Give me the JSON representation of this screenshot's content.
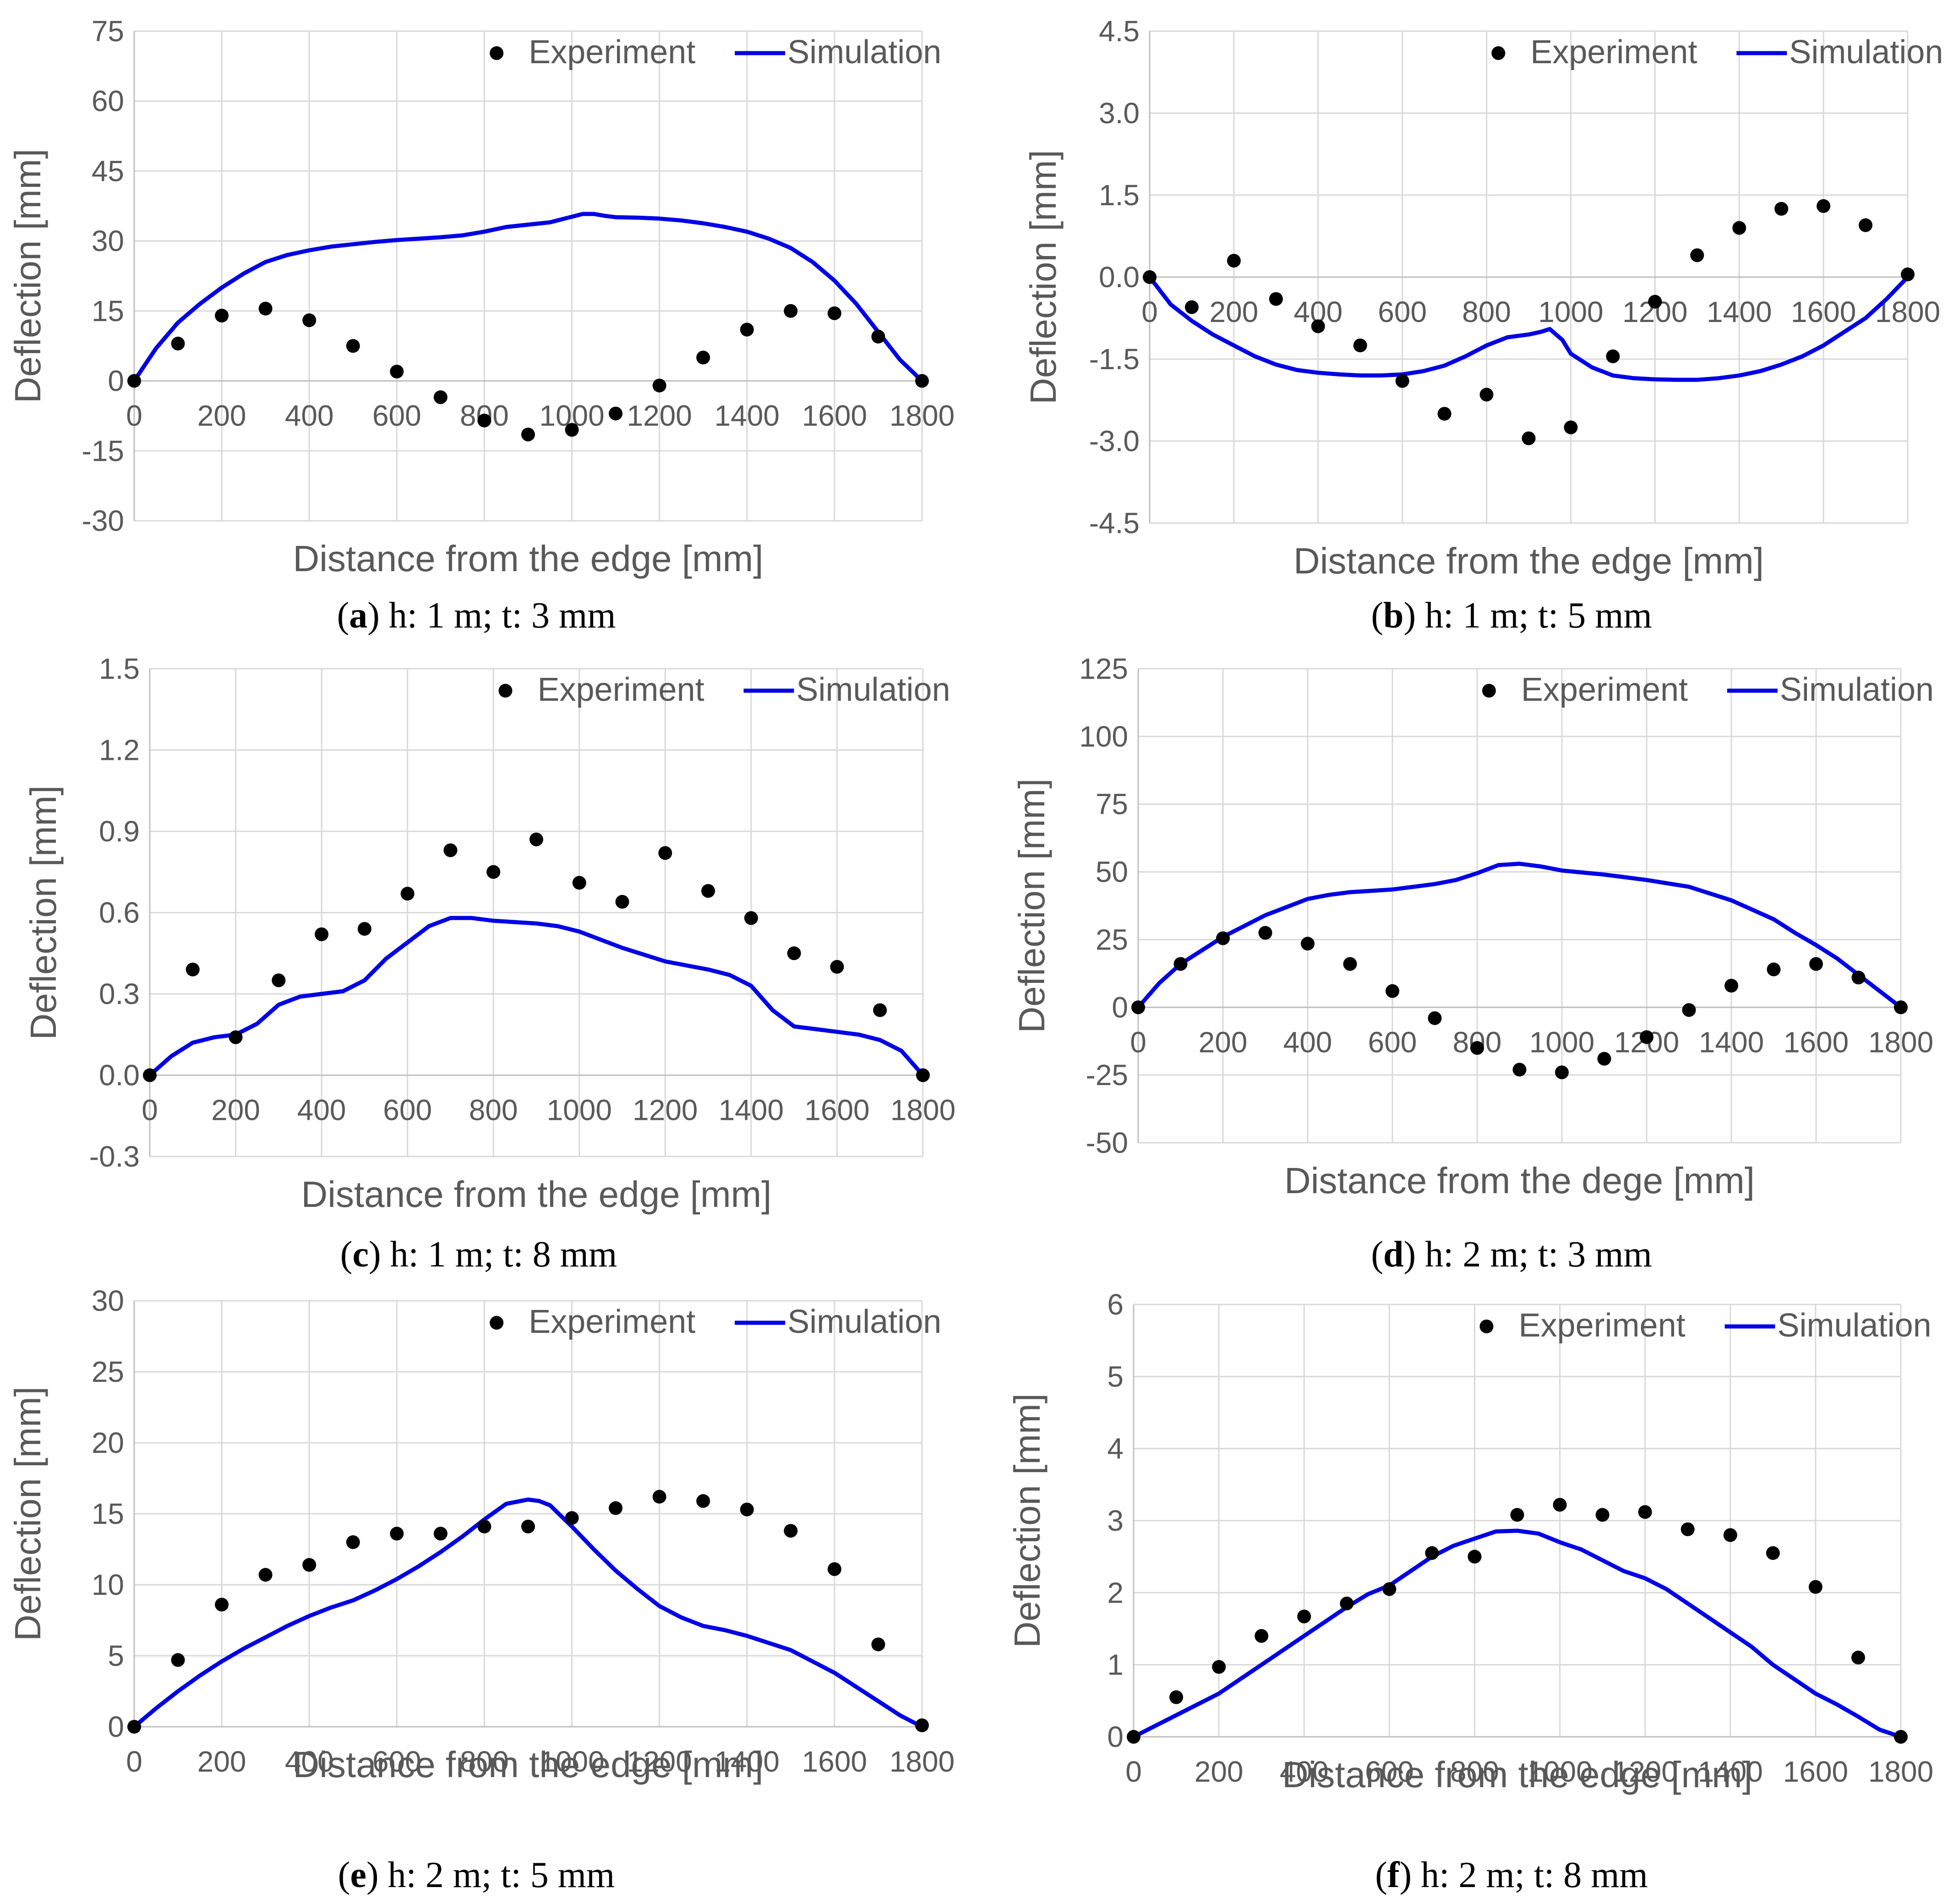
{
  "colors": {
    "experiment": "#000000",
    "simulation": "#0000e6"
  },
  "chart_data": [
    {
      "type": "scatter+line",
      "caption": {
        "letter": "a",
        "text": "h: 1 m; t: 3 mm"
      },
      "xlabel": "Distance from the edge [mm]",
      "ylabel": "Deflection [mm]",
      "xlim": [
        0,
        1800
      ],
      "ylim": [
        -30,
        75
      ],
      "xticks": [
        0,
        200,
        400,
        600,
        800,
        1000,
        1200,
        1400,
        1600,
        1800
      ],
      "xtick_labels": [
        "0",
        "200",
        "400",
        "600",
        "800",
        "1000",
        "1200",
        "1400",
        "1600",
        "1800"
      ],
      "yticks": [
        -30,
        -15,
        0,
        15,
        30,
        45,
        60,
        75
      ],
      "ytick_labels": [
        "-30",
        "-15",
        "0",
        "15",
        "30",
        "45",
        "60",
        "75"
      ],
      "legend": [
        "Experiment",
        "Simulation"
      ],
      "experiment": {
        "x": [
          0,
          100,
          200,
          300,
          400,
          500,
          600,
          700,
          800,
          900,
          1000,
          1100,
          1200,
          1300,
          1400,
          1500,
          1600,
          1700,
          1800
        ],
        "y": [
          0,
          8,
          14,
          15.5,
          13,
          7.5,
          2,
          -3.5,
          -8.5,
          -11.5,
          -10.5,
          -7,
          -1,
          5,
          11,
          15,
          14.5,
          9.5,
          0
        ]
      },
      "simulation": {
        "x": [
          0,
          50,
          100,
          150,
          200,
          250,
          300,
          350,
          400,
          450,
          500,
          550,
          600,
          650,
          700,
          750,
          800,
          850,
          900,
          950,
          1000,
          1025,
          1050,
          1075,
          1100,
          1150,
          1200,
          1250,
          1300,
          1350,
          1400,
          1450,
          1500,
          1550,
          1600,
          1650,
          1700,
          1750,
          1800
        ],
        "y": [
          0,
          7,
          12.5,
          16.5,
          20,
          23,
          25.5,
          27,
          28,
          28.8,
          29.3,
          29.8,
          30.2,
          30.5,
          30.8,
          31.2,
          32,
          33,
          33.5,
          34,
          35.2,
          35.8,
          35.8,
          35.4,
          35.1,
          35,
          34.8,
          34.4,
          33.8,
          33,
          32,
          30.5,
          28.5,
          25.5,
          21.5,
          16.5,
          10.5,
          4.5,
          0
        ]
      }
    },
    {
      "type": "scatter+line",
      "caption": {
        "letter": "b",
        "text": "h: 1 m; t: 5 mm"
      },
      "xlabel": "Distance from the edge [mm]",
      "ylabel": "Deflection [mm]",
      "xlim": [
        0,
        1800
      ],
      "ylim": [
        -4.5,
        4.5
      ],
      "xticks": [
        0,
        200,
        400,
        600,
        800,
        1000,
        1200,
        1400,
        1600,
        1800
      ],
      "xtick_labels": [
        "0",
        "200",
        "400",
        "600",
        "800",
        "1000",
        "1200",
        "1400",
        "1600",
        "1800"
      ],
      "yticks": [
        -4.5,
        -3,
        -1.5,
        0,
        1.5,
        3,
        4.5
      ],
      "ytick_labels": [
        "-4.5",
        "-3.0",
        "-1.5",
        "0.0",
        "1.5",
        "3.0",
        "4.5"
      ],
      "legend": [
        "Experiment",
        "Simulation"
      ],
      "experiment": {
        "x": [
          0,
          100,
          200,
          300,
          400,
          500,
          600,
          700,
          800,
          900,
          1000,
          1100,
          1200,
          1300,
          1400,
          1500,
          1600,
          1700,
          1800
        ],
        "y": [
          0,
          -0.55,
          0.3,
          -0.4,
          -0.9,
          -1.25,
          -1.9,
          -2.5,
          -2.15,
          -2.95,
          -2.75,
          -1.45,
          -0.45,
          0.4,
          0.9,
          1.25,
          1.3,
          0.95,
          0.05
        ]
      },
      "simulation": {
        "x": [
          0,
          50,
          100,
          150,
          200,
          250,
          300,
          350,
          400,
          450,
          500,
          550,
          600,
          650,
          700,
          750,
          800,
          850,
          900,
          930,
          950,
          980,
          1000,
          1050,
          1100,
          1150,
          1200,
          1250,
          1300,
          1350,
          1400,
          1450,
          1500,
          1550,
          1600,
          1650,
          1700,
          1750,
          1800
        ],
        "y": [
          0,
          -0.5,
          -0.8,
          -1.05,
          -1.25,
          -1.45,
          -1.6,
          -1.7,
          -1.75,
          -1.78,
          -1.8,
          -1.8,
          -1.78,
          -1.72,
          -1.62,
          -1.45,
          -1.25,
          -1.1,
          -1.05,
          -1.0,
          -0.95,
          -1.15,
          -1.4,
          -1.65,
          -1.8,
          -1.85,
          -1.87,
          -1.88,
          -1.88,
          -1.85,
          -1.8,
          -1.72,
          -1.6,
          -1.45,
          -1.25,
          -1.0,
          -0.75,
          -0.4,
          0
        ]
      }
    },
    {
      "type": "scatter+line",
      "caption": {
        "letter": "c",
        "text": "h: 1 m; t: 8 mm"
      },
      "xlabel": "Distance from the edge [mm]",
      "ylabel": "Deflection [mm]",
      "xlim": [
        0,
        1800
      ],
      "ylim": [
        -0.3,
        1.5
      ],
      "xticks": [
        0,
        200,
        400,
        600,
        800,
        1000,
        1200,
        1400,
        1600,
        1800
      ],
      "xtick_labels": [
        "0",
        "200",
        "400",
        "600",
        "800",
        "1000",
        "1200",
        "1400",
        "1600",
        "1800"
      ],
      "yticks": [
        -0.3,
        0,
        0.3,
        0.6,
        0.9,
        1.2,
        1.5
      ],
      "ytick_labels": [
        "-0.3",
        "0.0",
        "0.3",
        "0.6",
        "0.9",
        "1.2",
        "1.5"
      ],
      "legend": [
        "Experiment",
        "Simulation"
      ],
      "experiment": {
        "x": [
          0,
          100,
          200,
          300,
          400,
          500,
          600,
          700,
          800,
          900,
          1000,
          1100,
          1200,
          1300,
          1400,
          1500,
          1600,
          1700,
          1800
        ],
        "y": [
          0,
          0.39,
          0.14,
          0.35,
          0.52,
          0.54,
          0.67,
          0.83,
          0.75,
          0.87,
          0.71,
          0.64,
          0.82,
          0.68,
          0.58,
          0.45,
          0.4,
          0.24,
          0
        ]
      },
      "simulation": {
        "x": [
          0,
          50,
          100,
          150,
          200,
          250,
          300,
          350,
          400,
          450,
          500,
          550,
          600,
          650,
          700,
          750,
          800,
          850,
          900,
          950,
          1000,
          1100,
          1200,
          1300,
          1350,
          1400,
          1450,
          1500,
          1550,
          1600,
          1650,
          1700,
          1750,
          1800
        ],
        "y": [
          0,
          0.07,
          0.12,
          0.14,
          0.15,
          0.19,
          0.26,
          0.29,
          0.3,
          0.31,
          0.35,
          0.43,
          0.49,
          0.55,
          0.58,
          0.58,
          0.57,
          0.565,
          0.56,
          0.55,
          0.53,
          0.47,
          0.42,
          0.39,
          0.37,
          0.33,
          0.24,
          0.18,
          0.17,
          0.16,
          0.15,
          0.13,
          0.09,
          0
        ]
      }
    },
    {
      "type": "scatter+line",
      "caption": {
        "letter": "d",
        "text": "h: 2 m; t: 3 mm"
      },
      "xlabel": "Distance from the dege [mm]",
      "ylabel": "Deflection [mm]",
      "xlim": [
        0,
        1800
      ],
      "ylim": [
        -50,
        125
      ],
      "xticks": [
        0,
        200,
        400,
        600,
        800,
        1000,
        1200,
        1400,
        1600,
        1800
      ],
      "xtick_labels": [
        "0",
        "200",
        "400",
        "600",
        "800",
        "1000",
        "1200",
        "1400",
        "1600",
        "1800"
      ],
      "yticks": [
        -50,
        -25,
        0,
        25,
        50,
        75,
        100,
        125
      ],
      "ytick_labels": [
        "-50",
        "-25",
        "0",
        "25",
        "50",
        "75",
        "100",
        "125"
      ],
      "legend": [
        "Experiment",
        "Simulation"
      ],
      "experiment": {
        "x": [
          0,
          100,
          200,
          300,
          400,
          500,
          600,
          700,
          800,
          900,
          1000,
          1100,
          1200,
          1300,
          1400,
          1500,
          1600,
          1700,
          1800
        ],
        "y": [
          0,
          16,
          25.5,
          27.5,
          23.5,
          16,
          6,
          -4,
          -15,
          -23,
          -24,
          -19,
          -11,
          -1,
          8,
          14,
          16,
          11,
          0
        ]
      },
      "simulation": {
        "x": [
          0,
          50,
          100,
          150,
          200,
          250,
          300,
          350,
          400,
          450,
          500,
          550,
          600,
          650,
          700,
          750,
          800,
          850,
          900,
          950,
          1000,
          1100,
          1200,
          1300,
          1400,
          1450,
          1500,
          1550,
          1600,
          1650,
          1700,
          1750,
          1800
        ],
        "y": [
          0,
          9,
          16,
          21,
          26,
          30,
          34,
          37,
          40,
          41.5,
          42.5,
          43,
          43.5,
          44.5,
          45.5,
          47,
          49.5,
          52.5,
          53,
          52,
          50.5,
          49,
          47,
          44.5,
          39.5,
          36,
          32.5,
          27.5,
          23,
          18,
          12,
          6,
          0
        ]
      }
    },
    {
      "type": "scatter+line",
      "caption": {
        "letter": "e",
        "text": "h: 2 m; t: 5 mm"
      },
      "xlabel": "Distance from the edge [mm]",
      "ylabel": "Deflection [mm]",
      "xlim": [
        0,
        1800
      ],
      "ylim": [
        0,
        30
      ],
      "xticks": [
        0,
        200,
        400,
        600,
        800,
        1000,
        1200,
        1400,
        1600,
        1800
      ],
      "xtick_labels": [
        "0",
        "200",
        "400",
        "600",
        "800",
        "1000",
        "1200",
        "1400",
        "1600",
        "1800"
      ],
      "yticks": [
        0,
        5,
        10,
        15,
        20,
        25,
        30
      ],
      "ytick_labels": [
        "0",
        "5",
        "10",
        "15",
        "20",
        "25",
        "30"
      ],
      "legend": [
        "Experiment",
        "Simulation"
      ],
      "experiment": {
        "x": [
          0,
          100,
          200,
          300,
          400,
          500,
          600,
          700,
          800,
          900,
          1000,
          1100,
          1200,
          1300,
          1400,
          1500,
          1600,
          1700,
          1800
        ],
        "y": [
          0,
          4.7,
          8.6,
          10.7,
          11.4,
          13,
          13.6,
          13.6,
          14.1,
          14.1,
          14.7,
          15.4,
          16.2,
          15.9,
          15.3,
          13.8,
          11.1,
          5.8,
          0.1
        ]
      },
      "simulation": {
        "x": [
          0,
          50,
          100,
          150,
          200,
          250,
          300,
          350,
          400,
          450,
          500,
          550,
          600,
          650,
          700,
          750,
          800,
          850,
          900,
          925,
          950,
          1000,
          1050,
          1100,
          1150,
          1200,
          1250,
          1300,
          1350,
          1400,
          1450,
          1500,
          1550,
          1600,
          1650,
          1700,
          1750,
          1800
        ],
        "y": [
          0,
          1.3,
          2.5,
          3.6,
          4.6,
          5.5,
          6.3,
          7.1,
          7.8,
          8.4,
          8.9,
          9.6,
          10.4,
          11.3,
          12.3,
          13.4,
          14.6,
          15.7,
          16,
          15.9,
          15.6,
          14.1,
          12.5,
          11,
          9.7,
          8.5,
          7.7,
          7.1,
          6.8,
          6.4,
          5.9,
          5.4,
          4.6,
          3.8,
          2.8,
          1.8,
          0.8,
          0
        ]
      }
    },
    {
      "type": "scatter+line",
      "caption": {
        "letter": "f",
        "text": "h: 2 m; t: 8 mm"
      },
      "xlabel": "Distance from the edge [mm]",
      "ylabel": "Deflection [mm]",
      "xlim": [
        0,
        1800
      ],
      "ylim": [
        0,
        6
      ],
      "xticks": [
        0,
        200,
        400,
        600,
        800,
        1000,
        1200,
        1400,
        1600,
        1800
      ],
      "xtick_labels": [
        "0",
        "200",
        "400",
        "600",
        "800",
        "1000",
        "1200",
        "1400",
        "1600",
        "1800"
      ],
      "yticks": [
        0,
        1,
        2,
        3,
        4,
        5,
        6
      ],
      "ytick_labels": [
        "0",
        "1",
        "2",
        "3",
        "4",
        "5",
        "6"
      ],
      "legend": [
        "Experiment",
        "Simulation"
      ],
      "experiment": {
        "x": [
          0,
          100,
          200,
          300,
          400,
          500,
          600,
          700,
          800,
          900,
          1000,
          1100,
          1200,
          1300,
          1400,
          1500,
          1600,
          1700,
          1800
        ],
        "y": [
          0,
          0.55,
          0.97,
          1.4,
          1.67,
          1.85,
          2.05,
          2.55,
          2.5,
          3.08,
          3.22,
          3.08,
          3.12,
          2.88,
          2.8,
          2.55,
          2.08,
          1.1,
          0
        ]
      },
      "simulation": {
        "x": [
          0,
          50,
          100,
          150,
          200,
          250,
          300,
          350,
          400,
          450,
          500,
          550,
          600,
          650,
          700,
          750,
          800,
          850,
          900,
          950,
          1000,
          1050,
          1100,
          1150,
          1200,
          1250,
          1300,
          1350,
          1400,
          1450,
          1500,
          1550,
          1600,
          1650,
          1700,
          1750,
          1800
        ],
        "y": [
          0,
          0.15,
          0.3,
          0.45,
          0.6,
          0.8,
          1.0,
          1.2,
          1.4,
          1.6,
          1.8,
          1.98,
          2.1,
          2.3,
          2.5,
          2.65,
          2.75,
          2.85,
          2.86,
          2.82,
          2.7,
          2.6,
          2.45,
          2.3,
          2.2,
          2.05,
          1.85,
          1.65,
          1.45,
          1.25,
          1.0,
          0.8,
          0.6,
          0.45,
          0.28,
          0.1,
          0
        ]
      }
    }
  ]
}
